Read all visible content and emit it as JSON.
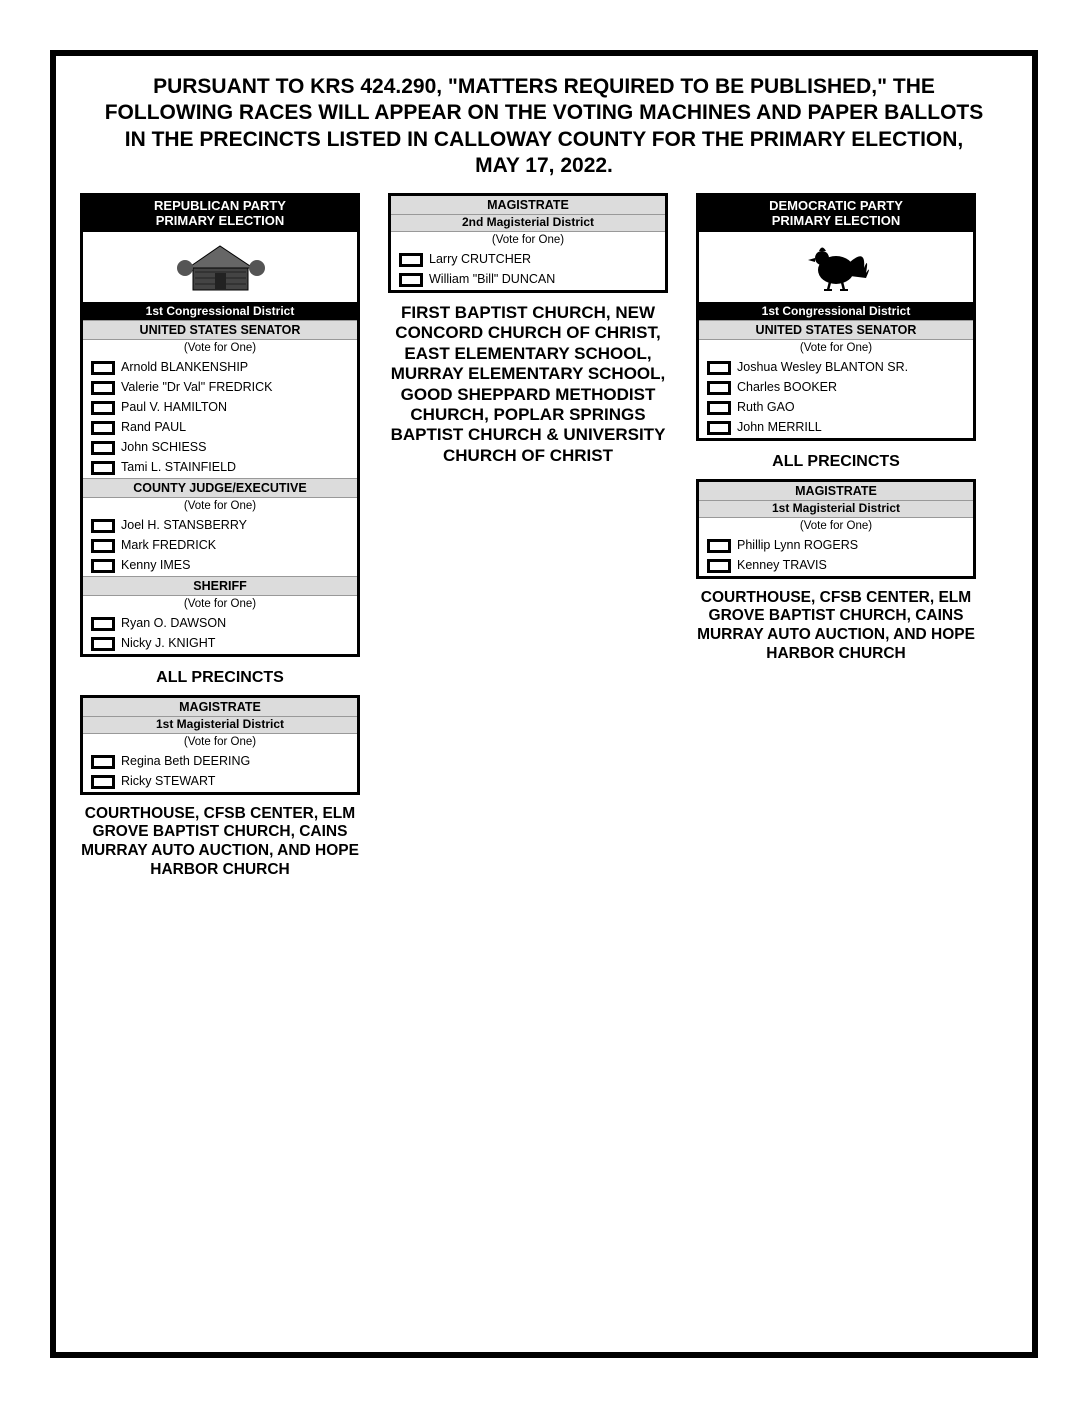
{
  "headline": "PURSUANT TO KRS 424.290, \"MATTERS REQUIRED TO BE PUBLISHED,\" THE FOLLOWING RACES WILL APPEAR ON THE VOTING MACHINES AND PAPER BALLOTS IN THE PRECINCTS LISTED IN CALLOWAY COUNTY FOR THE PRIMARY ELECTION, MAY 17, 2022.",
  "colors": {
    "header_bg": "#000000",
    "header_fg": "#ffffff",
    "race_bg": "#dcdcdc",
    "border": "#000000",
    "page_bg": "#ffffff"
  },
  "left": {
    "party_header_line1": "REPUBLICAN PARTY",
    "party_header_line2": "PRIMARY ELECTION",
    "district_bar": "1st Congressional District",
    "senator": {
      "title": "UNITED STATES SENATOR",
      "vote": "(Vote for One)",
      "cands": [
        "Arnold BLANKENSHIP",
        "Valerie \"Dr Val\" FREDRICK",
        "Paul V. HAMILTON",
        "Rand PAUL",
        "John SCHIESS",
        "Tami L. STAINFIELD"
      ]
    },
    "judge": {
      "title": "COUNTY JUDGE/EXECUTIVE",
      "vote": "(Vote for One)",
      "cands": [
        "Joel H. STANSBERRY",
        "Mark FREDRICK",
        "Kenny IMES"
      ]
    },
    "sheriff": {
      "title": "SHERIFF",
      "vote": "(Vote for One)",
      "cands": [
        "Ryan O. DAWSON",
        "Nicky J. KNIGHT"
      ]
    },
    "all_precincts": "ALL PRECINCTS",
    "mag1": {
      "title": "MAGISTRATE",
      "sub": "1st Magisterial District",
      "vote": "(Vote for One)",
      "cands": [
        "Regina Beth DEERING",
        "Ricky STEWART"
      ]
    },
    "precincts1": "COURTHOUSE, CFSB CENTER, ELM GROVE BAPTIST CHURCH, CAINS MURRAY AUTO AUCTION, AND HOPE HARBOR CHURCH"
  },
  "center": {
    "mag2": {
      "title": "MAGISTRATE",
      "sub": "2nd Magisterial District",
      "vote": "(Vote for One)",
      "cands": [
        "Larry CRUTCHER",
        "William \"Bill\" DUNCAN"
      ]
    },
    "precincts": "FIRST BAPTIST CHURCH, NEW CONCORD CHURCH OF CHRIST, EAST ELEMENTARY SCHOOL, MURRAY ELEMENTARY SCHOOL, GOOD SHEPPARD METHODIST CHURCH, POPLAR SPRINGS BAPTIST CHURCH & UNIVERSITY CHURCH OF CHRIST"
  },
  "right": {
    "party_header_line1": "DEMOCRATIC PARTY",
    "party_header_line2": "PRIMARY ELECTION",
    "district_bar": "1st Congressional District",
    "senator": {
      "title": "UNITED STATES SENATOR",
      "vote": "(Vote for One)",
      "cands": [
        "Joshua Wesley BLANTON SR.",
        "Charles BOOKER",
        "Ruth GAO",
        "John MERRILL"
      ]
    },
    "all_precincts": "ALL PRECINCTS",
    "mag1": {
      "title": "MAGISTRATE",
      "sub": "1st Magisterial District",
      "vote": "(Vote for One)",
      "cands": [
        "Phillip Lynn ROGERS",
        "Kenney TRAVIS"
      ]
    },
    "precincts1": "COURTHOUSE, CFSB CENTER, ELM GROVE BAPTIST CHURCH, CAINS MURRAY AUTO AUCTION, AND HOPE HARBOR CHURCH"
  }
}
